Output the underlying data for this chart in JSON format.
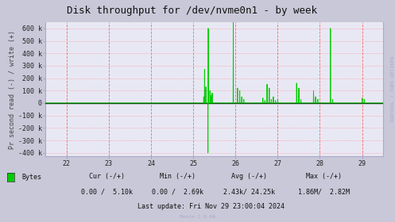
{
  "title": "Disk throughput for /dev/nvme0n1 - by week",
  "ylabel": "Pr second read (-) / write (+)",
  "xlabel_ticks": [
    22,
    23,
    24,
    25,
    26,
    27,
    28,
    29
  ],
  "xlim": [
    21.5,
    29.5
  ],
  "ylim": [
    -430000,
    650000
  ],
  "yticks": [
    -400000,
    -300000,
    -200000,
    -100000,
    0,
    100000,
    200000,
    300000,
    400000,
    500000,
    600000
  ],
  "ytick_labels": [
    "-400 k",
    "-300 k",
    "-200 k",
    "-100 k",
    "0",
    "100 k",
    "200 k",
    "300 k",
    "400 k",
    "500 k",
    "600 k"
  ],
  "bg_color": "#c8c8d8",
  "plot_bg_color": "#e8e8f4",
  "grid_color": "#ff8888",
  "line_color": "#00cc00",
  "zero_line_color": "#000000",
  "vline_color": "#ff6666",
  "right_label": "RRDTOOL / TOBI OETIKER",
  "legend_label": "Bytes",
  "legend_color": "#00cc00",
  "cur_neg": "0.00",
  "cur_pos": "5.10k",
  "min_neg": "0.00",
  "min_pos": "2.69k",
  "avg_neg": "2.43k",
  "avg_pos": "24.25k",
  "max_neg": "1.86M",
  "max_pos": "2.82M",
  "last_update": "Last update: Fri Nov 29 23:00:04 2024",
  "munin_version": "Munin 2.0.69",
  "title_fontsize": 9,
  "axis_fontsize": 6,
  "tick_fontsize": 6,
  "legend_fontsize": 6,
  "watermark_fontsize": 4.5
}
